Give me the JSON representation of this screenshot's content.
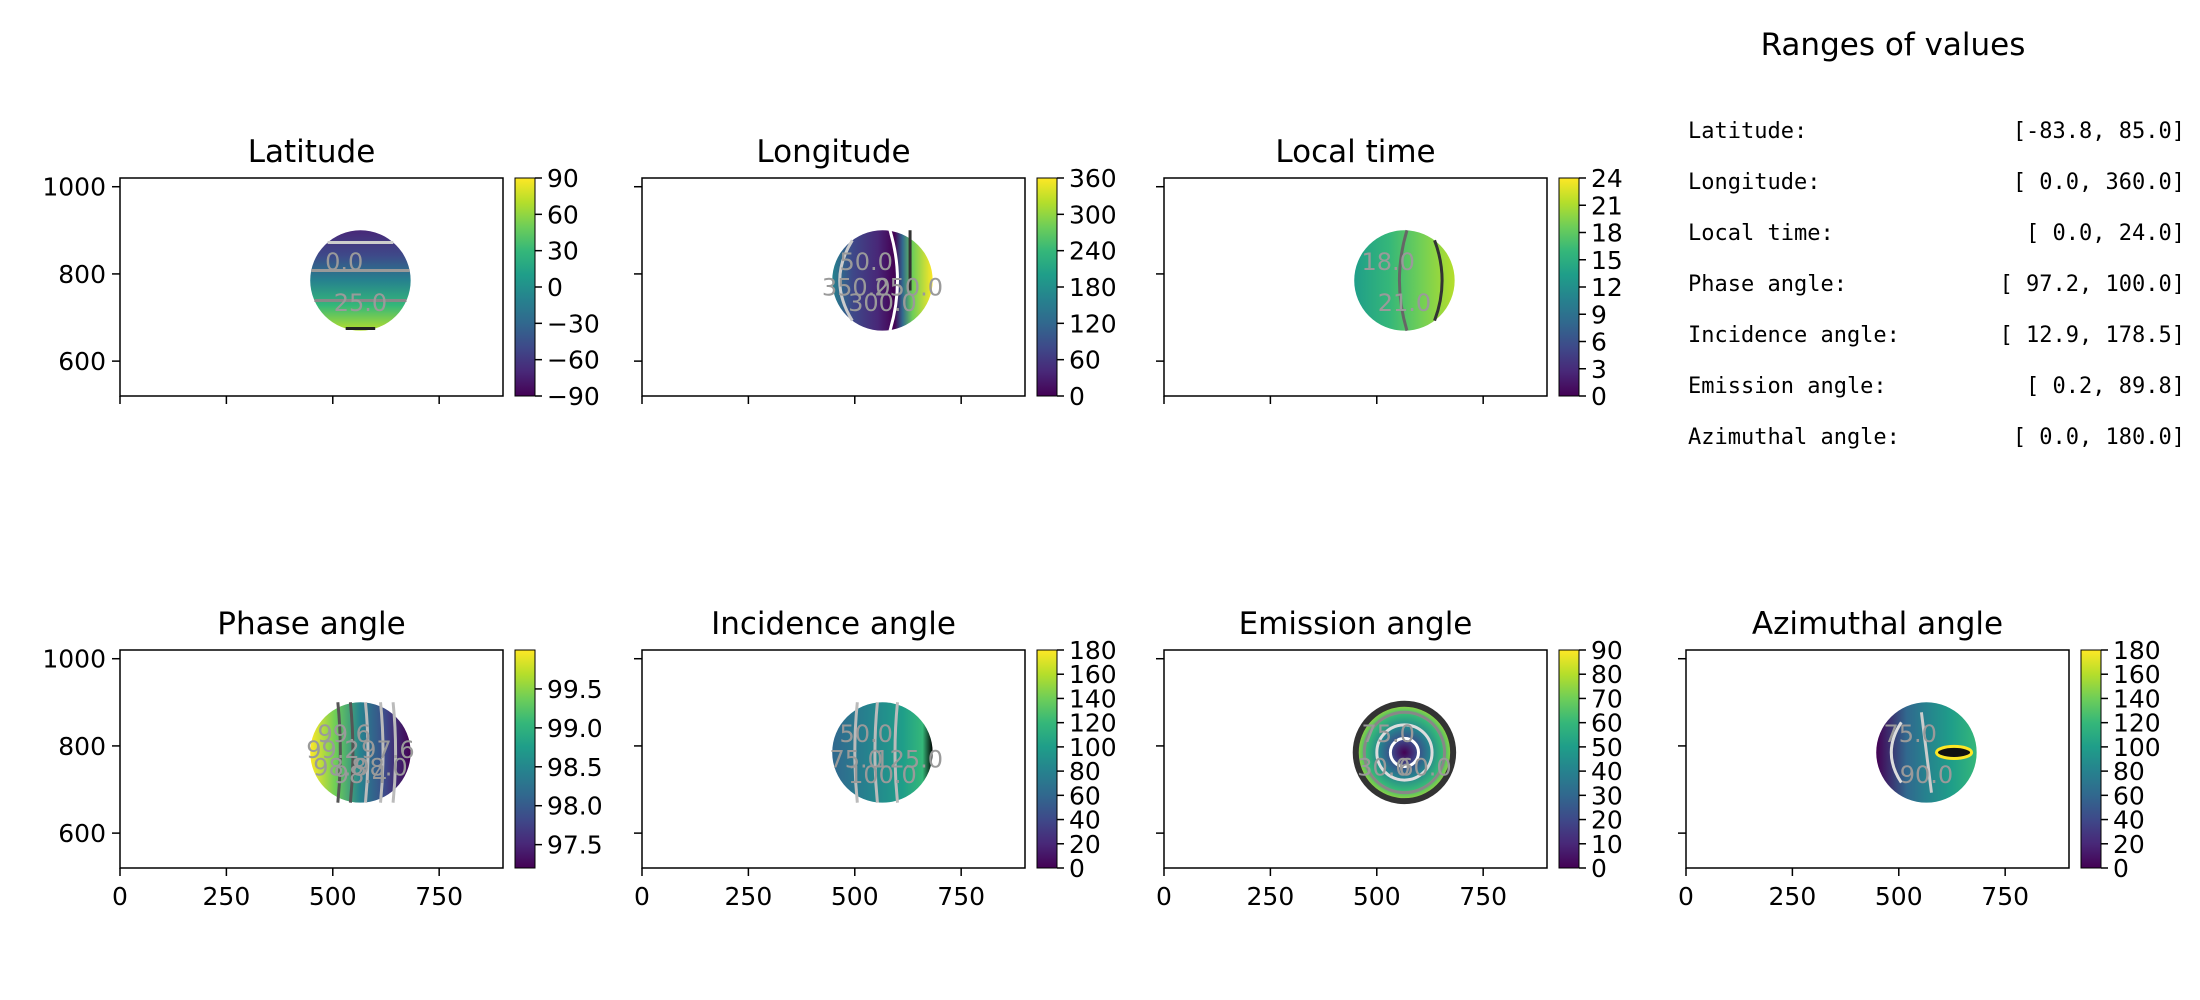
{
  "chart_data": {
    "type": "heatmap",
    "colormap": "viridis",
    "shared_x_ticks": [
      0,
      250,
      500,
      750
    ],
    "shared_y_ticks": [
      600,
      800,
      1000
    ],
    "xlim": [
      0,
      900
    ],
    "ylim": [
      520,
      1020
    ],
    "disc": {
      "cx": 565,
      "cy": 785,
      "r": 118
    },
    "panels": [
      {
        "key": "latitude",
        "title": "Latitude",
        "vmin": -90,
        "vmax": 90,
        "cbar_ticks": [
          -90,
          -60,
          -30,
          0,
          30,
          60,
          90
        ],
        "cbar_labels": [
          "−90",
          "−60",
          "−30",
          "0",
          "30",
          "60",
          "90"
        ],
        "contour_labels": [
          "0.0",
          "25.0"
        ]
      },
      {
        "key": "longitude",
        "title": "Longitude",
        "vmin": 0,
        "vmax": 360,
        "cbar_ticks": [
          0,
          60,
          120,
          180,
          240,
          300,
          360
        ],
        "cbar_labels": [
          "0",
          "60",
          "120",
          "180",
          "240",
          "300",
          "360"
        ],
        "contour_labels": [
          "50.0",
          "350.0",
          "300.0",
          "250.0"
        ]
      },
      {
        "key": "localtime",
        "title": "Local time",
        "vmin": 0,
        "vmax": 24,
        "cbar_ticks": [
          0,
          3,
          6,
          9,
          12,
          15,
          18,
          21,
          24
        ],
        "cbar_labels": [
          "0",
          "3",
          "6",
          "9",
          "12",
          "15",
          "18",
          "21",
          "24"
        ],
        "contour_labels": [
          "18.0",
          "21.0"
        ]
      },
      {
        "key": "phase",
        "title": "Phase angle",
        "vmin": 97.2,
        "vmax": 100.0,
        "cbar_ticks": [
          97.5,
          98.0,
          98.5,
          99.0,
          99.5
        ],
        "cbar_labels": [
          "97.5",
          "98.0",
          "98.5",
          "99.0",
          "99.5"
        ],
        "contour_labels": [
          "99.6",
          "99.2",
          "98.8",
          "98.4",
          "98.0",
          "97.6"
        ]
      },
      {
        "key": "incidence",
        "title": "Incidence angle",
        "vmin": 0,
        "vmax": 180,
        "cbar_ticks": [
          0,
          20,
          40,
          60,
          80,
          100,
          120,
          140,
          160,
          180
        ],
        "cbar_labels": [
          "0",
          "20",
          "40",
          "60",
          "80",
          "100",
          "120",
          "140",
          "160",
          "180"
        ],
        "contour_labels": [
          "50.0",
          "75.0",
          "100.0",
          "125.0"
        ]
      },
      {
        "key": "emission",
        "title": "Emission angle",
        "vmin": 0,
        "vmax": 90,
        "cbar_ticks": [
          0,
          10,
          20,
          30,
          40,
          50,
          60,
          70,
          80,
          90
        ],
        "cbar_labels": [
          "0",
          "10",
          "20",
          "30",
          "40",
          "50",
          "60",
          "70",
          "80",
          "90"
        ],
        "contour_labels": [
          "75.0",
          "30.0",
          "60.0"
        ]
      },
      {
        "key": "azimuthal",
        "title": "Azimuthal angle",
        "vmin": 0,
        "vmax": 180,
        "cbar_ticks": [
          0,
          20,
          40,
          60,
          80,
          100,
          120,
          140,
          160,
          180
        ],
        "cbar_labels": [
          "0",
          "20",
          "40",
          "60",
          "80",
          "100",
          "120",
          "140",
          "160",
          "180"
        ],
        "contour_labels": [
          "75.0",
          "90.0"
        ]
      }
    ]
  },
  "ranges": {
    "title": "Ranges of values",
    "rows": [
      {
        "label": "Latitude:",
        "value": "[-83.8,  85.0]"
      },
      {
        "label": "Longitude:",
        "value": "[  0.0, 360.0]"
      },
      {
        "label": "Local time:",
        "value": "[  0.0,  24.0]"
      },
      {
        "label": "Phase angle:",
        "value": "[ 97.2, 100.0]"
      },
      {
        "label": "Incidence angle:",
        "value": "[ 12.9, 178.5]"
      },
      {
        "label": "Emission angle:",
        "value": "[  0.2,  89.8]"
      },
      {
        "label": "Azimuthal angle:",
        "value": "[  0.0, 180.0]"
      }
    ]
  },
  "colors": {
    "viridis": [
      "#440154",
      "#482878",
      "#3e4989",
      "#31688e",
      "#26828e",
      "#1f9e89",
      "#35b779",
      "#6ece58",
      "#b5de2b",
      "#fde725"
    ]
  }
}
